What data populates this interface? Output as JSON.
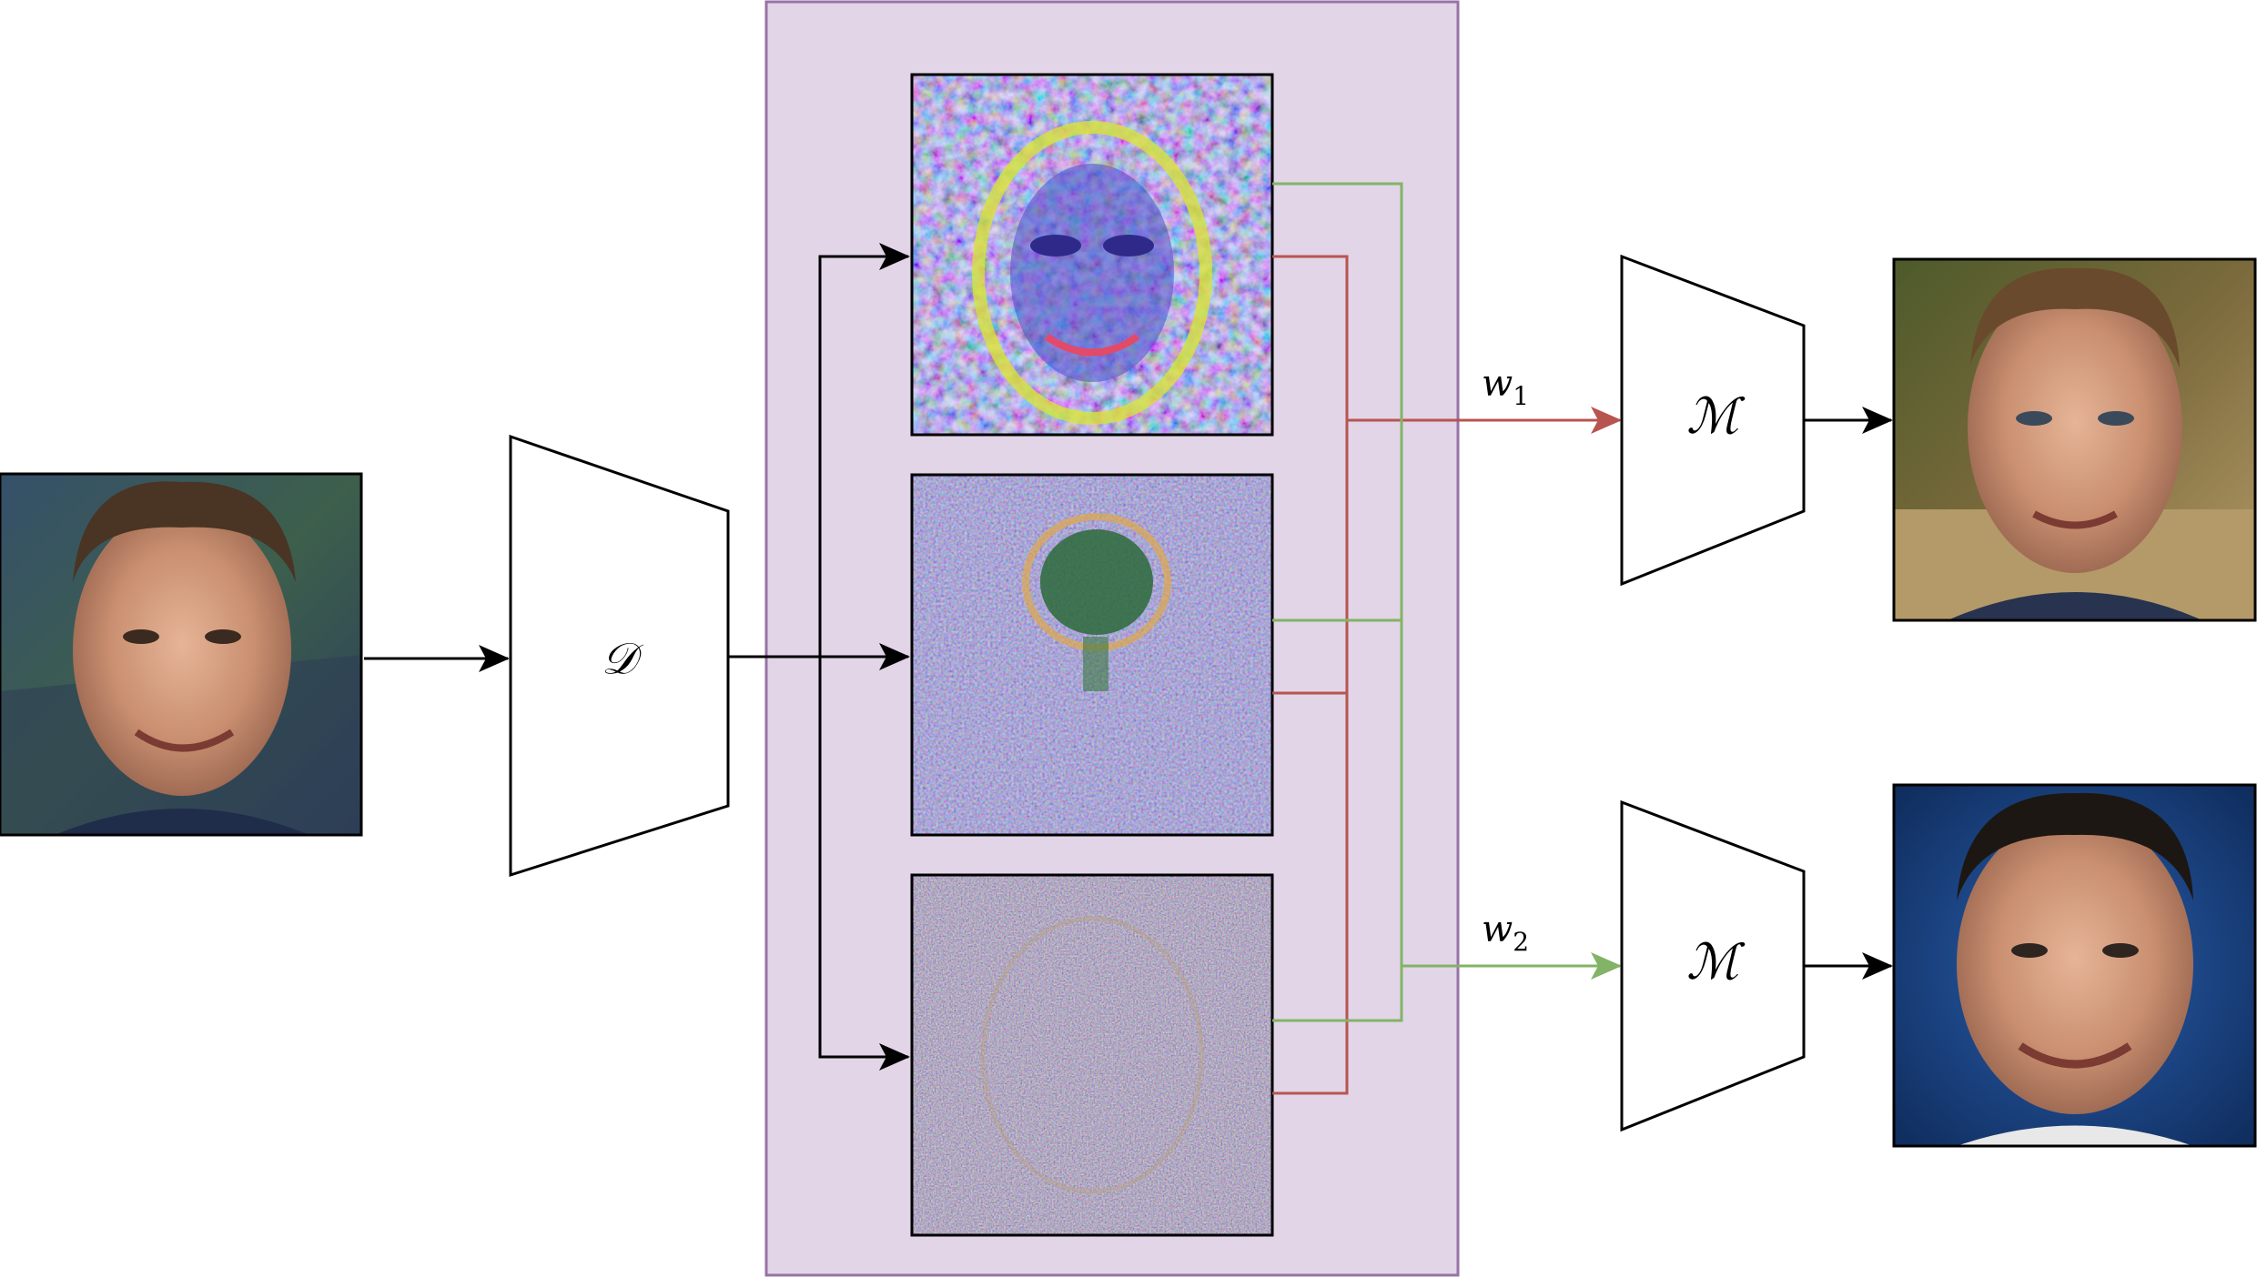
{
  "encoder": {
    "symbol": "𝒟"
  },
  "mapper_top": {
    "symbol": "ℳ"
  },
  "mapper_bottom": {
    "symbol": "ℳ"
  },
  "edge_labels": {
    "w1": {
      "base": "w",
      "sub": "1"
    },
    "w2": {
      "base": "w",
      "sub": "2"
    }
  },
  "colors": {
    "panel_fill": "#e1d5e7",
    "panel_stroke": "#9673a6",
    "red_path": "#b85450",
    "green_path": "#82b366",
    "arrow_black": "#000000"
  },
  "images": {
    "input_face": "face-photo",
    "feature_maps": [
      "feature-map-1",
      "feature-map-2",
      "feature-map-3"
    ],
    "output_face_top": "face-photo",
    "output_face_bottom": "face-photo"
  }
}
